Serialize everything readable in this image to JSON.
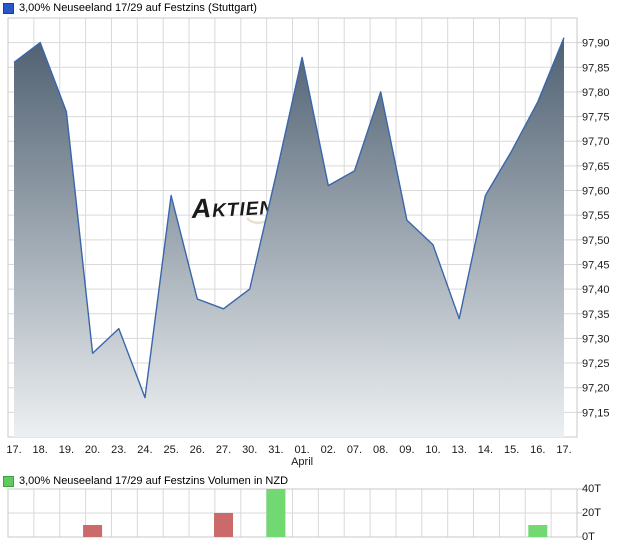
{
  "chart_data": [
    {
      "type": "area",
      "title": "3,00% Neuseeland 17/29 auf Festzins (Stuttgart)",
      "legend_color": "#2857c8",
      "legend_border": "#1a3e9c",
      "x": [
        "17.",
        "18.",
        "19.",
        "20.",
        "23.",
        "24.",
        "25.",
        "26.",
        "27.",
        "30.",
        "31.",
        "01.",
        "02.",
        "07.",
        "08.",
        "09.",
        "10.",
        "13.",
        "14.",
        "15.",
        "16.",
        "17."
      ],
      "month_label": {
        "index": 11,
        "text": "April"
      },
      "values": [
        97.86,
        97.9,
        97.76,
        97.27,
        97.32,
        97.18,
        97.59,
        97.38,
        97.36,
        97.4,
        97.63,
        97.87,
        97.61,
        97.64,
        97.8,
        97.54,
        97.49,
        97.34,
        97.59,
        97.68,
        97.78,
        97.91
      ],
      "ylim": [
        97.1,
        97.95
      ],
      "yticks": [
        97.15,
        97.2,
        97.25,
        97.3,
        97.35,
        97.4,
        97.45,
        97.5,
        97.55,
        97.6,
        97.65,
        97.7,
        97.75,
        97.8,
        97.85,
        97.9
      ],
      "ytick_labels": [
        "97,15",
        "97,20",
        "97,25",
        "97,30",
        "97,35",
        "97,40",
        "97,45",
        "97,50",
        "97,55",
        "97,60",
        "97,65",
        "97,70",
        "97,75",
        "97,80",
        "97,85",
        "97,90"
      ],
      "grid": true,
      "line_color": "#3a66ab",
      "area_fill_top": "#47596b",
      "area_fill_bottom": "#edf0f2",
      "watermark_text": "Aktiencheck",
      "watermark_color": "#eae1d3"
    },
    {
      "type": "bar",
      "title": "3,00% Neuseeland 17/29 auf Festzins Volumen in NZD",
      "legend_color": "#5fcb5f",
      "legend_border": "#3da23d",
      "unit": "T",
      "categories": [
        "17.",
        "18.",
        "19.",
        "20.",
        "23.",
        "24.",
        "25.",
        "26.",
        "27.",
        "30.",
        "31.",
        "01.",
        "02.",
        "07.",
        "08.",
        "09.",
        "10.",
        "13.",
        "14.",
        "15.",
        "16.",
        "17."
      ],
      "values": [
        0,
        0,
        0,
        10,
        0,
        0,
        0,
        0,
        20,
        0,
        40,
        0,
        0,
        0,
        0,
        0,
        0,
        0,
        0,
        0,
        10,
        0
      ],
      "bar_directions": [
        null,
        null,
        null,
        "down",
        null,
        null,
        null,
        null,
        "down",
        null,
        "up",
        null,
        null,
        null,
        null,
        null,
        null,
        null,
        null,
        null,
        "up",
        null
      ],
      "color_up": "#72d872",
      "color_down": "#cb6a6a",
      "ylim": [
        0,
        40
      ],
      "yticks": [
        0,
        20,
        40
      ],
      "ytick_labels": [
        "0T",
        "20T",
        "40T"
      ],
      "grid": true
    }
  ]
}
